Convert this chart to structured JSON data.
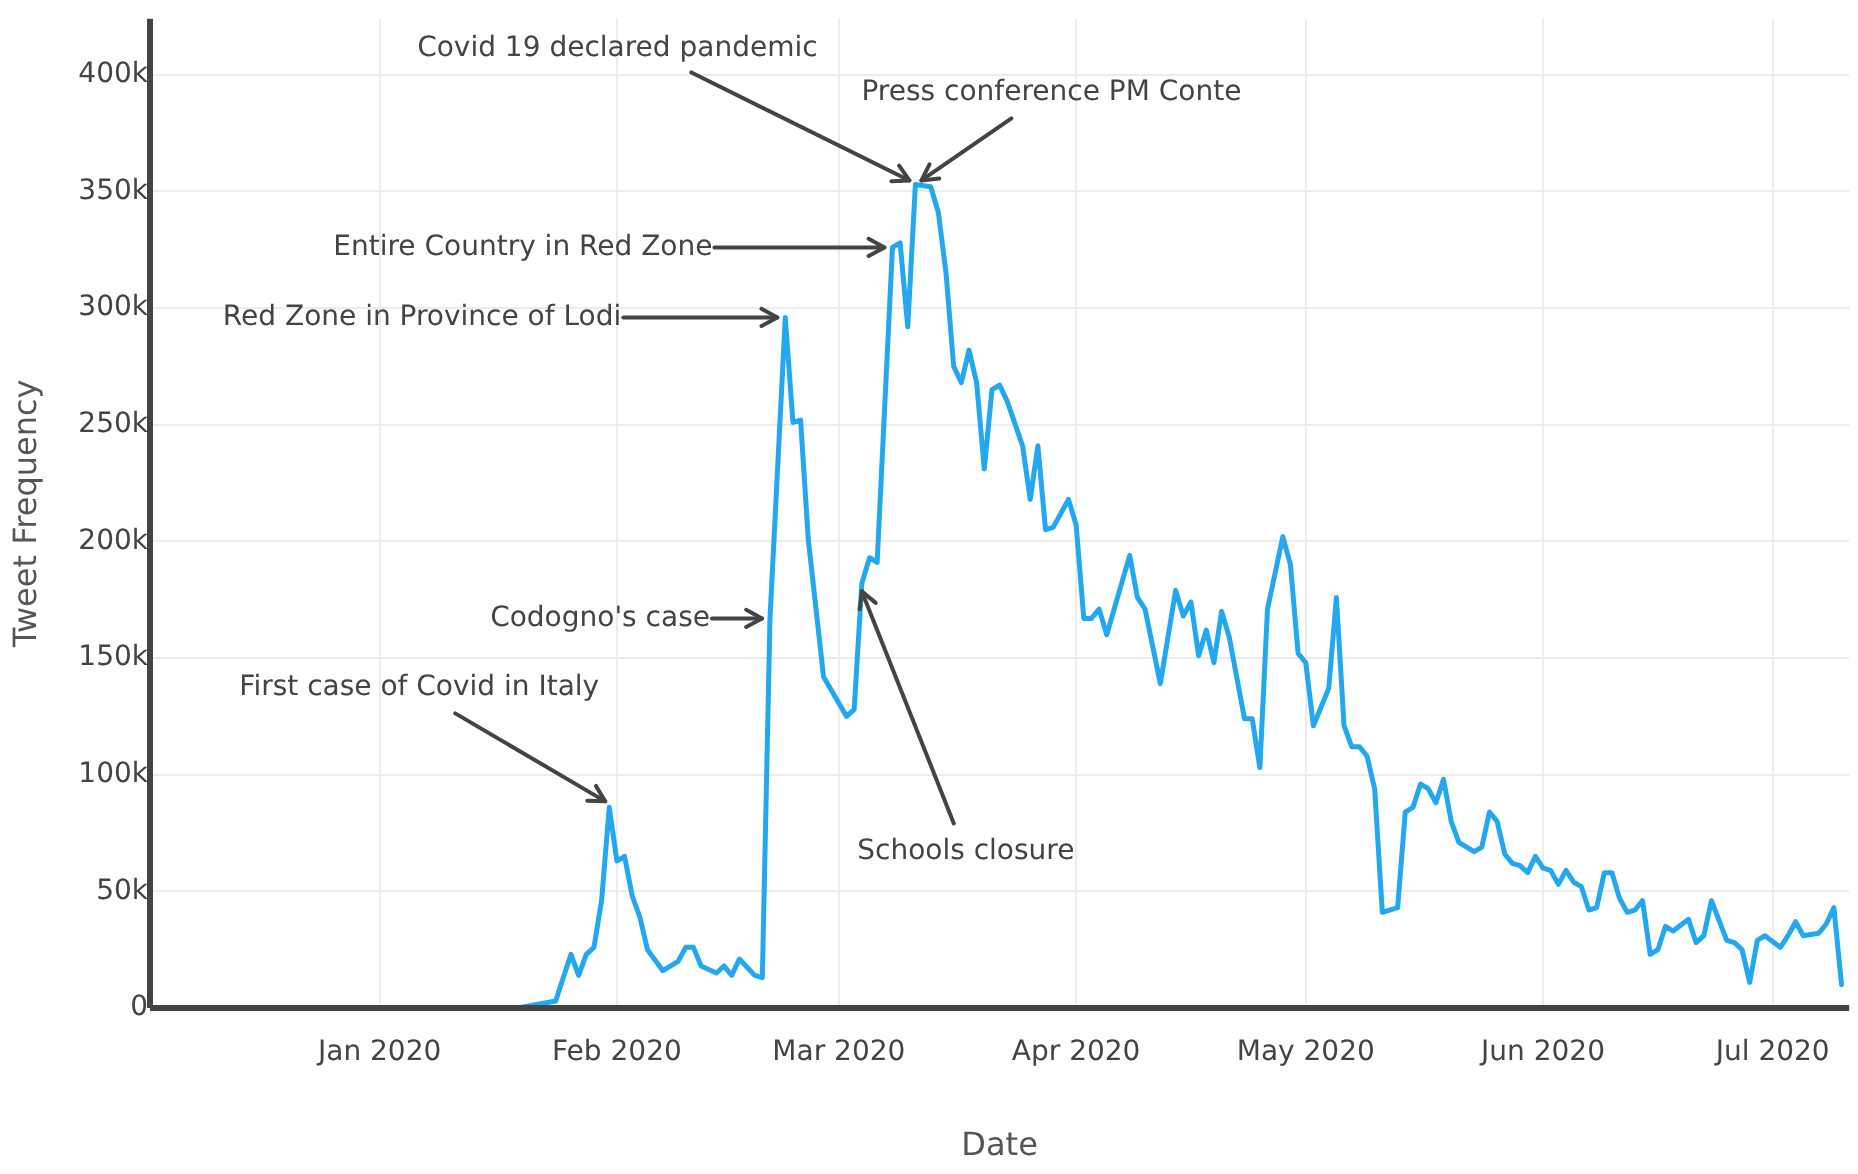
{
  "chart_data": {
    "type": "line",
    "xlabel": "Date",
    "ylabel": "Tweet Frequency",
    "legend": false,
    "grid": true,
    "marker": "none",
    "line_style": "solid",
    "xlim": [
      "2019-12-02",
      "2020-07-11"
    ],
    "xticks": [
      {
        "value": "2020-01-01",
        "label": "Jan 2020"
      },
      {
        "value": "2020-02-01",
        "label": "Feb 2020"
      },
      {
        "value": "2020-03-01",
        "label": "Mar 2020"
      },
      {
        "value": "2020-04-01",
        "label": "Apr 2020"
      },
      {
        "value": "2020-05-01",
        "label": "May 2020"
      },
      {
        "value": "2020-06-01",
        "label": "Jun 2020"
      },
      {
        "value": "2020-07-01",
        "label": "Jul 2020"
      }
    ],
    "ylim": [
      0,
      424000
    ],
    "yticks": [
      0,
      {
        "value": 50000,
        "label": "50k"
      },
      {
        "value": 100000,
        "label": "100k"
      },
      {
        "value": 150000,
        "label": "150k"
      },
      {
        "value": 200000,
        "label": "200k"
      },
      {
        "value": 250000,
        "label": "250k"
      },
      {
        "value": 300000,
        "label": "300k"
      },
      {
        "value": 350000,
        "label": "350k"
      },
      {
        "value": 400000,
        "label": "400k"
      }
    ],
    "series": [
      {
        "color": "#22a7f0",
        "x": [
          "2020-01-19",
          "2020-01-24",
          "2020-01-26",
          "2020-01-27",
          "2020-01-28",
          "2020-01-29",
          "2020-01-30",
          "2020-01-31",
          "2020-02-01",
          "2020-02-02",
          "2020-02-03",
          "2020-02-04",
          "2020-02-05",
          "2020-02-07",
          "2020-02-09",
          "2020-02-10",
          "2020-02-11",
          "2020-02-12",
          "2020-02-14",
          "2020-02-15",
          "2020-02-16",
          "2020-02-17",
          "2020-02-19",
          "2020-02-20",
          "2020-02-21",
          "2020-02-23",
          "2020-02-24",
          "2020-02-25",
          "2020-02-26",
          "2020-02-28",
          "2020-03-02",
          "2020-03-03",
          "2020-03-04",
          "2020-03-05",
          "2020-03-06",
          "2020-03-08",
          "2020-03-09",
          "2020-03-10",
          "2020-03-11",
          "2020-03-13",
          "2020-03-14",
          "2020-03-15",
          "2020-03-16",
          "2020-03-17",
          "2020-03-18",
          "2020-03-19",
          "2020-03-20",
          "2020-03-21",
          "2020-03-22",
          "2020-03-23",
          "2020-03-25",
          "2020-03-26",
          "2020-03-27",
          "2020-03-28",
          "2020-03-29",
          "2020-03-31",
          "2020-04-01",
          "2020-04-02",
          "2020-04-03",
          "2020-04-04",
          "2020-04-05",
          "2020-04-08",
          "2020-04-09",
          "2020-04-10",
          "2020-04-12",
          "2020-04-14",
          "2020-04-15",
          "2020-04-16",
          "2020-04-17",
          "2020-04-18",
          "2020-04-19",
          "2020-04-20",
          "2020-04-21",
          "2020-04-23",
          "2020-04-24",
          "2020-04-25",
          "2020-04-26",
          "2020-04-28",
          "2020-04-29",
          "2020-04-30",
          "2020-05-01",
          "2020-05-02",
          "2020-05-03",
          "2020-05-04",
          "2020-05-05",
          "2020-05-06",
          "2020-05-07",
          "2020-05-08",
          "2020-05-09",
          "2020-05-10",
          "2020-05-11",
          "2020-05-13",
          "2020-05-14",
          "2020-05-15",
          "2020-05-16",
          "2020-05-17",
          "2020-05-18",
          "2020-05-19",
          "2020-05-20",
          "2020-05-21",
          "2020-05-23",
          "2020-05-24",
          "2020-05-25",
          "2020-05-26",
          "2020-05-27",
          "2020-05-28",
          "2020-05-29",
          "2020-05-30",
          "2020-05-31",
          "2020-06-01",
          "2020-06-02",
          "2020-06-03",
          "2020-06-04",
          "2020-06-05",
          "2020-06-06",
          "2020-06-07",
          "2020-06-08",
          "2020-06-09",
          "2020-06-10",
          "2020-06-11",
          "2020-06-12",
          "2020-06-13",
          "2020-06-14",
          "2020-06-15",
          "2020-06-16",
          "2020-06-17",
          "2020-06-18",
          "2020-06-20",
          "2020-06-21",
          "2020-06-22",
          "2020-06-23",
          "2020-06-25",
          "2020-06-26",
          "2020-06-27",
          "2020-06-28",
          "2020-06-29",
          "2020-06-30",
          "2020-07-02",
          "2020-07-03",
          "2020-07-04",
          "2020-07-05",
          "2020-07-07",
          "2020-07-08",
          "2020-07-09",
          "2020-07-10"
        ],
        "values": [
          0,
          3000,
          23000,
          14000,
          23000,
          26000,
          46000,
          86000,
          63000,
          65000,
          48000,
          39000,
          25000,
          16000,
          20000,
          26000,
          26000,
          18000,
          15000,
          18000,
          14000,
          21000,
          14000,
          13000,
          167000,
          296000,
          251000,
          252000,
          201000,
          142000,
          125000,
          128000,
          182000,
          193000,
          191000,
          326000,
          328000,
          292000,
          353000,
          352000,
          341000,
          315000,
          275000,
          268000,
          282000,
          268000,
          231000,
          265000,
          267000,
          260000,
          241000,
          218000,
          241000,
          205000,
          206000,
          218000,
          207000,
          167000,
          167000,
          171000,
          160000,
          194000,
          176000,
          171000,
          139000,
          179000,
          168000,
          174000,
          151000,
          162000,
          148000,
          170000,
          159000,
          124000,
          124000,
          103000,
          171000,
          202000,
          190000,
          152000,
          148000,
          121000,
          129000,
          137000,
          176000,
          121000,
          112000,
          112000,
          108000,
          94000,
          41000,
          43000,
          84000,
          86000,
          96000,
          94000,
          88000,
          98000,
          80000,
          71000,
          67000,
          69000,
          84000,
          80000,
          66000,
          62000,
          61000,
          58000,
          65000,
          60000,
          59000,
          53000,
          59000,
          54000,
          52000,
          42000,
          43000,
          58000,
          58000,
          47000,
          41000,
          42000,
          46000,
          23000,
          25000,
          35000,
          33000,
          38000,
          28000,
          31000,
          46000,
          29000,
          28000,
          25000,
          11000,
          29000,
          31000,
          26000,
          31000,
          37000,
          31000,
          32000,
          36000,
          43000,
          10000
        ]
      }
    ],
    "annotations": [
      {
        "text": "First case of Covid in Italy",
        "x": "2020-01-31",
        "y": 86000
      },
      {
        "text": "Codogno's case",
        "x": "2020-02-21",
        "y": 167000
      },
      {
        "text": "Red Zone in Province of Lodi",
        "x": "2020-02-23",
        "y": 296000
      },
      {
        "text": "Entire Country in Red Zone",
        "x": "2020-03-08",
        "y": 326000
      },
      {
        "text": "Covid 19 declared pandemic",
        "x": "2020-03-11",
        "y": 353000
      },
      {
        "text": "Press conference PM Conte",
        "x": "2020-03-11",
        "y": 353000
      },
      {
        "text": "Schools closure",
        "x": "2020-03-04",
        "y": 182000
      }
    ]
  }
}
